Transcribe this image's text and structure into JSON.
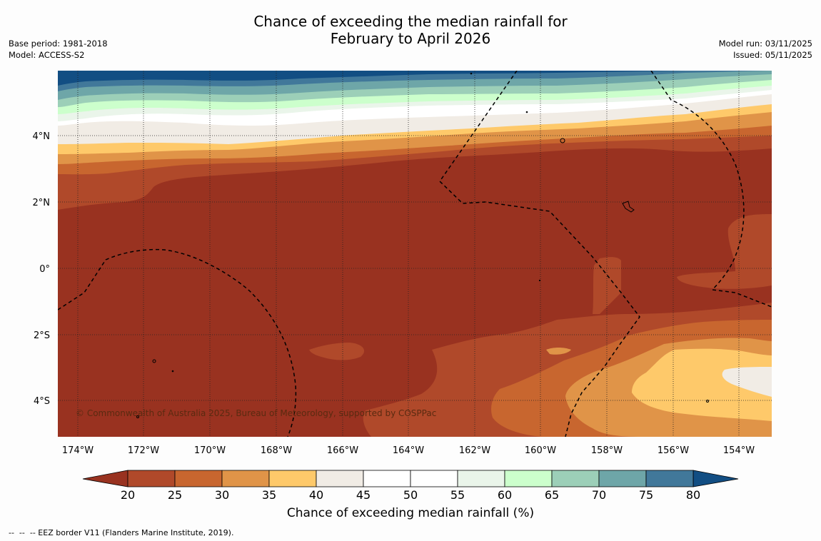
{
  "title_line1": "Chance of exceeding the median rainfall for",
  "title_line2": "February to April 2026",
  "base_period": "Base period: 1981-2018",
  "model": "Model: ACCESS-S2",
  "model_run": "Model run: 03/11/2025",
  "issued": "Issued: 05/11/2025",
  "copyright": "© Commonwealth of Australia 2025, Bureau of Meteorology, supported by COSPPac",
  "lat_labels": [
    "4°N",
    "2°N",
    "0°",
    "2°S",
    "4°S"
  ],
  "lon_labels": [
    "174°W",
    "172°W",
    "170°W",
    "168°W",
    "166°W",
    "164°W",
    "162°W",
    "160°W",
    "158°W",
    "156°W",
    "154°W"
  ],
  "colorbar": {
    "label": "Chance of exceeding median rainfall (%)",
    "ticks": [
      "20",
      "25",
      "30",
      "35",
      "40",
      "45",
      "50",
      "55",
      "60",
      "65",
      "70",
      "75",
      "80"
    ],
    "colors": [
      "#993220",
      "#b0492a",
      "#c8662f",
      "#e09448",
      "#fec96a",
      "#f1ece5",
      "#ffffff",
      "#ffffff",
      "#eaf5ea",
      "#ccffcc",
      "#9ccfb8",
      "#6ea6a8",
      "#41789a",
      "#124e83"
    ]
  },
  "footnote": "--  --  -- EEZ border V11 (Flanders Marine Institute, 2019)."
}
